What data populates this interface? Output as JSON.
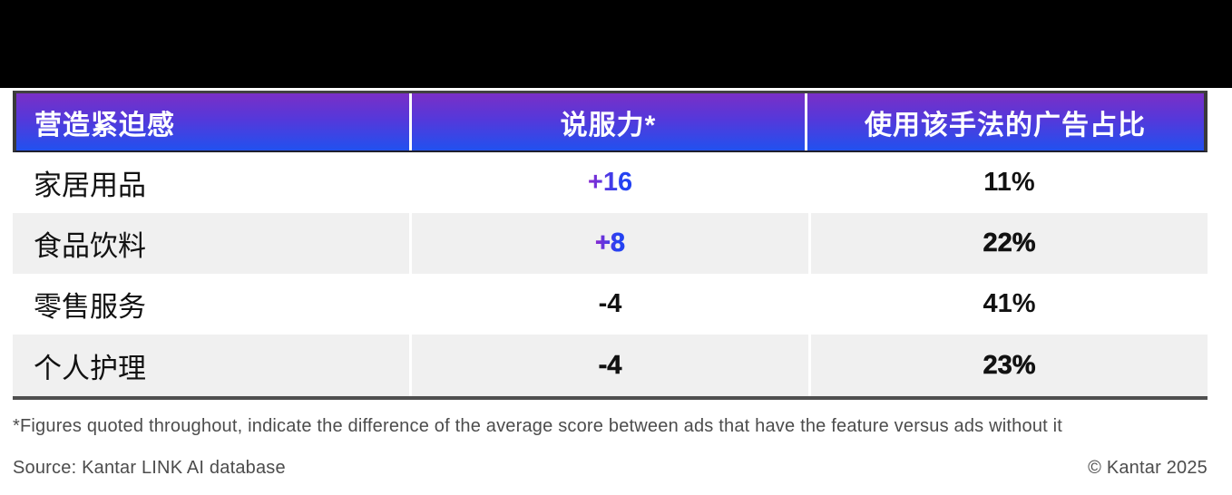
{
  "chart_data": {
    "type": "table",
    "title": "营造紧迫感 (Creating urgency) — persuasion vs. usage share table",
    "columns": [
      "营造紧迫感",
      "说服力*",
      "使用该手法的广告占比"
    ],
    "rows": [
      {
        "category": "家居用品",
        "persuasion": "+16",
        "ad_share": "11%"
      },
      {
        "category": "食品饮料",
        "persuasion": "+8",
        "ad_share": "22%"
      },
      {
        "category": "零售服务",
        "persuasion": "-4",
        "ad_share": "41%"
      },
      {
        "category": "个人护理",
        "persuasion": "-4",
        "ad_share": "23%"
      }
    ],
    "layout": {
      "header_gradient_top": "#7a2fc6",
      "header_gradient_bottom": "#2151ef",
      "positive_value_gradient": [
        "#8a2bd0",
        "#2442f2"
      ],
      "alt_row_background": "#f0f0f0",
      "zebra_rows": true
    }
  },
  "footer": {
    "footnote": "*Figures quoted throughout, indicate the difference of the average score between ads that have the feature versus ads without it",
    "source": "Source: Kantar LINK AI database",
    "copyright": "© Kantar 2025"
  }
}
